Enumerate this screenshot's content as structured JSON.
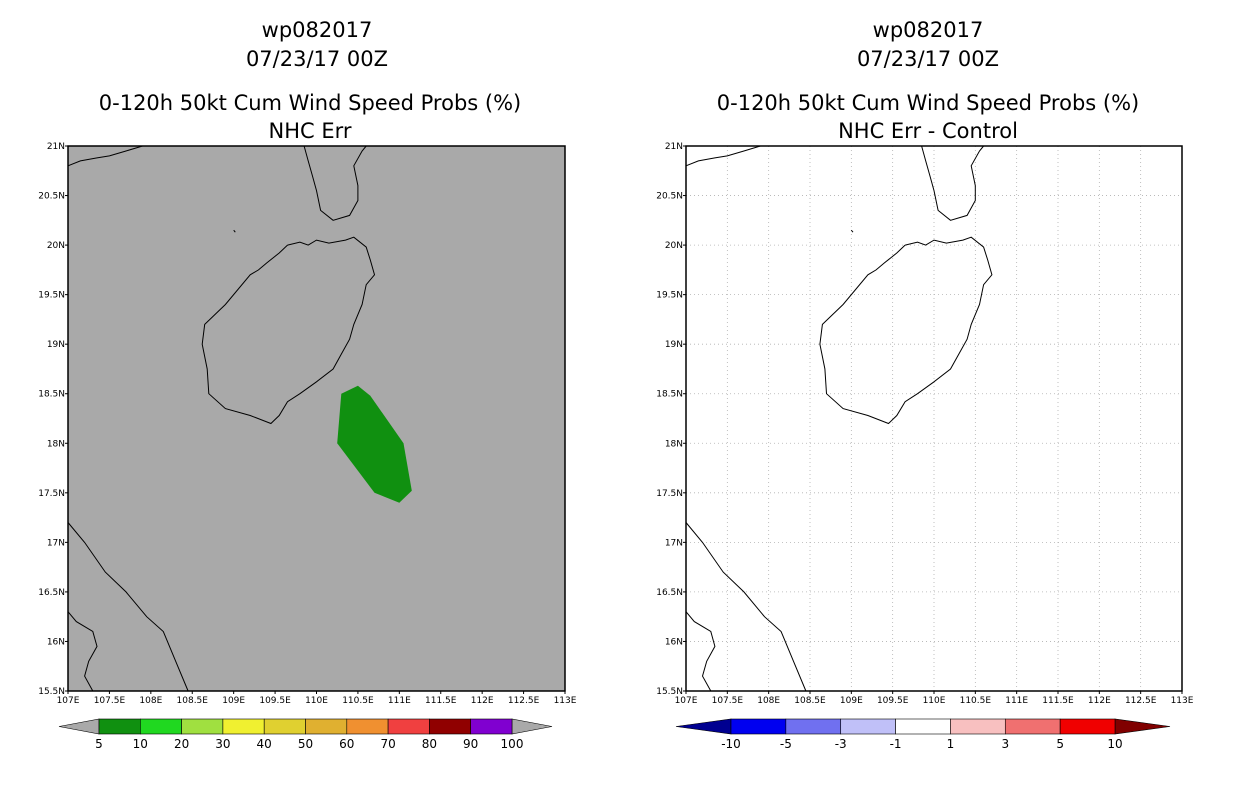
{
  "panels": [
    {
      "name": "left",
      "title1": "wp082017",
      "title2": "07/23/17 00Z",
      "title3": "0-120h 50kt Cum Wind Speed Probs (%)",
      "title4": "NHC Err",
      "background": "#a9a9a9",
      "colorbar": {
        "labels": [
          "5",
          "10",
          "20",
          "30",
          "40",
          "50",
          "60",
          "70",
          "80",
          "90",
          "100"
        ],
        "colors": [
          "#109010",
          "#20d820",
          "#a0e040",
          "#f0f030",
          "#e0d030",
          "#e0b030",
          "#f09030",
          "#f04040",
          "#900000",
          "#8000d0"
        ],
        "left_arrow_color": "#a9a9a9",
        "right_arrow_color": "#a9a9a9"
      }
    },
    {
      "name": "right",
      "title1": "wp082017",
      "title2": "07/23/17 00Z",
      "title3": "0-120h 50kt Cum Wind Speed Probs (%)",
      "title4": "NHC Err - Control",
      "background": "#ffffff",
      "colorbar": {
        "labels": [
          "-10",
          "-5",
          "-3",
          "-1",
          "1",
          "3",
          "5",
          "10"
        ],
        "colors": [
          "#0000f0",
          "#7070f0",
          "#c0c0f8",
          "#ffffff",
          "#f8c0c0",
          "#f07070",
          "#f00000"
        ],
        "left_arrow_color": "#000090",
        "right_arrow_color": "#800000"
      }
    }
  ],
  "chart_data": [
    {
      "type": "heatmap",
      "title": "0-120h 50kt Cum Wind Speed Probs (%) NHC Err",
      "xlim": [
        107,
        113
      ],
      "ylim": [
        15.5,
        21
      ],
      "x_tick_labels": [
        "107E",
        "107.5E",
        "108E",
        "108.5E",
        "109E",
        "109.5E",
        "110E",
        "110.5E",
        "111E",
        "111.5E",
        "112E",
        "112.5E",
        "113E"
      ],
      "y_tick_labels": [
        "15.5N",
        "16N",
        "16.5N",
        "17N",
        "17.5N",
        "18N",
        "18.5N",
        "19N",
        "19.5N",
        "20N",
        "20.5N",
        "21N"
      ],
      "grid": false,
      "contour_regions": [
        {
          "level": "5-10",
          "color": "#109010",
          "lonlat": [
            [
              110.3,
              18.5
            ],
            [
              110.5,
              18.58
            ],
            [
              110.65,
              18.48
            ],
            [
              111.05,
              18.0
            ],
            [
              111.15,
              17.52
            ],
            [
              111.0,
              17.4
            ],
            [
              110.7,
              17.5
            ],
            [
              110.25,
              18.0
            ]
          ]
        }
      ]
    },
    {
      "type": "heatmap",
      "title": "0-120h 50kt Cum Wind Speed Probs (%) NHC Err - Control",
      "xlim": [
        107,
        113
      ],
      "ylim": [
        15.5,
        21
      ],
      "x_tick_labels": [
        "107E",
        "107.5E",
        "108E",
        "108.5E",
        "109E",
        "109.5E",
        "110E",
        "110.5E",
        "111E",
        "111.5E",
        "112E",
        "112.5E",
        "113E"
      ],
      "y_tick_labels": [
        "15.5N",
        "16N",
        "16.5N",
        "17N",
        "17.5N",
        "18N",
        "18.5N",
        "19N",
        "19.5N",
        "20N",
        "20.5N",
        "21N"
      ],
      "grid": true,
      "contour_regions": []
    }
  ]
}
